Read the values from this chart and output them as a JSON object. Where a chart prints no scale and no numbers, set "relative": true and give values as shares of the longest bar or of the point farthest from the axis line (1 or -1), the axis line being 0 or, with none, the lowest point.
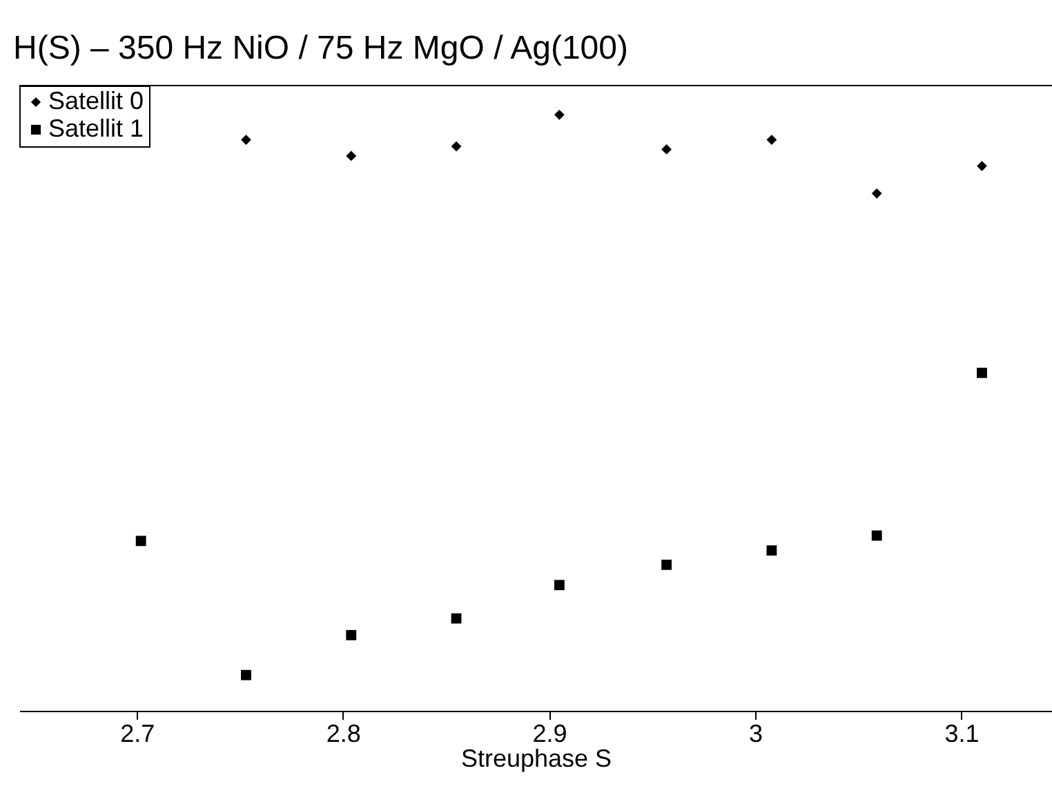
{
  "chart_data": {
    "type": "scatter",
    "title": "H(S)  –  350 Hz NiO / 75 Hz MgO / Ag(100)",
    "xlabel": "Streuphase S",
    "relative": true,
    "xlim": [
      2.643,
      3.144
    ],
    "xticks": [
      2.7,
      2.8,
      2.9,
      3,
      3.1
    ],
    "grid": false,
    "legend": "top left",
    "series": [
      {
        "name": "Satellit 0",
        "color": "#000000",
        "marker": "diamond",
        "x": [
          2.753,
          2.804,
          2.855,
          2.905,
          2.957,
          3.008,
          3.059,
          3.11
        ],
        "values": [
          0.958,
          0.931,
          0.947,
          1,
          0.942,
          0.958,
          0.868,
          0.914
        ]
      },
      {
        "name": "Satellit 1",
        "color": "#000000",
        "marker": "square",
        "x": [
          2.702,
          2.753,
          2.804,
          2.855,
          2.905,
          2.957,
          3.008,
          3.059,
          3.11
        ],
        "values": [
          0.285,
          0.06,
          0.127,
          0.155,
          0.211,
          0.245,
          0.269,
          0.294,
          0.567
        ]
      }
    ]
  }
}
